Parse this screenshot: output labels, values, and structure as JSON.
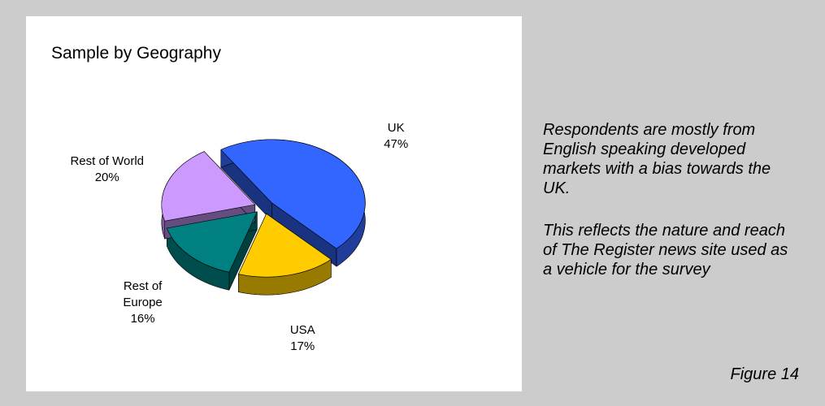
{
  "chart_data": {
    "type": "pie",
    "title": "Sample by Geography",
    "categories": [
      "UK",
      "USA",
      "Rest of Europe",
      "Rest of World"
    ],
    "values": [
      47,
      17,
      16,
      20
    ],
    "value_labels": [
      "47%",
      "17%",
      "16%",
      "20%"
    ],
    "colors": [
      "#3366ff",
      "#ffcc00",
      "#008080",
      "#cc99ff"
    ]
  },
  "notes": [
    "Respondents are mostly from English speaking developed markets with a bias towards the UK.",
    "This reflects the nature and reach of The Register news site used as a vehicle for the survey"
  ],
  "figure_label": "Figure 14"
}
